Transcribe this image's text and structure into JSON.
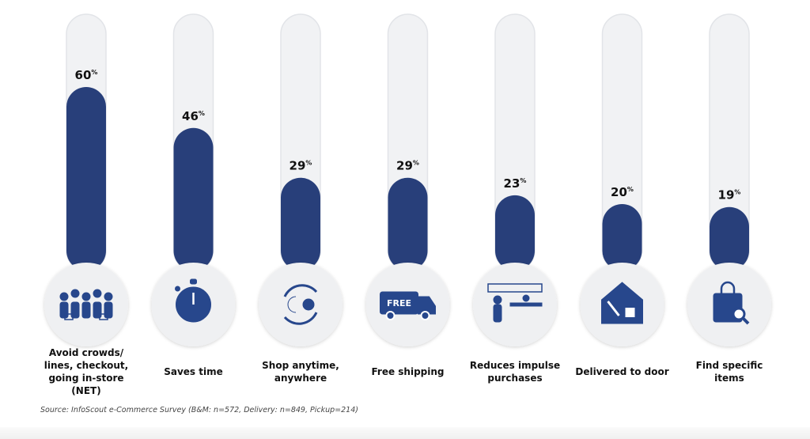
{
  "chart_data": {
    "type": "bar",
    "title": "",
    "xlabel": "",
    "ylabel": "",
    "ylim": [
      0,
      100
    ],
    "unit": "%",
    "categories": [
      [
        "Avoid crowds/",
        "lines, checkout,",
        "going in-store",
        "(NET)"
      ],
      [
        "Saves time"
      ],
      [
        "Shop anytime,",
        "anywhere"
      ],
      [
        "Free shipping"
      ],
      [
        "Reduces impulse",
        "purchases"
      ],
      [
        "Delivered to door"
      ],
      [
        "Find specific",
        "items"
      ]
    ],
    "values": [
      60,
      46,
      29,
      29,
      23,
      20,
      19
    ],
    "icons": [
      "crowd-icon",
      "stopwatch-icon",
      "day-night-cycle-icon",
      "delivery-truck-icon",
      "checkout-counter-icon",
      "home-delivery-icon",
      "shopping-bag-search-icon"
    ],
    "icon_text": {
      "truck": "FREE"
    },
    "bar_color": "#283f7a",
    "tube_color": "#f1f2f4"
  },
  "source": "Source: InfoScout e-Commerce Survey (B&M: n=572, Delivery: n=849, Pickup=214)"
}
